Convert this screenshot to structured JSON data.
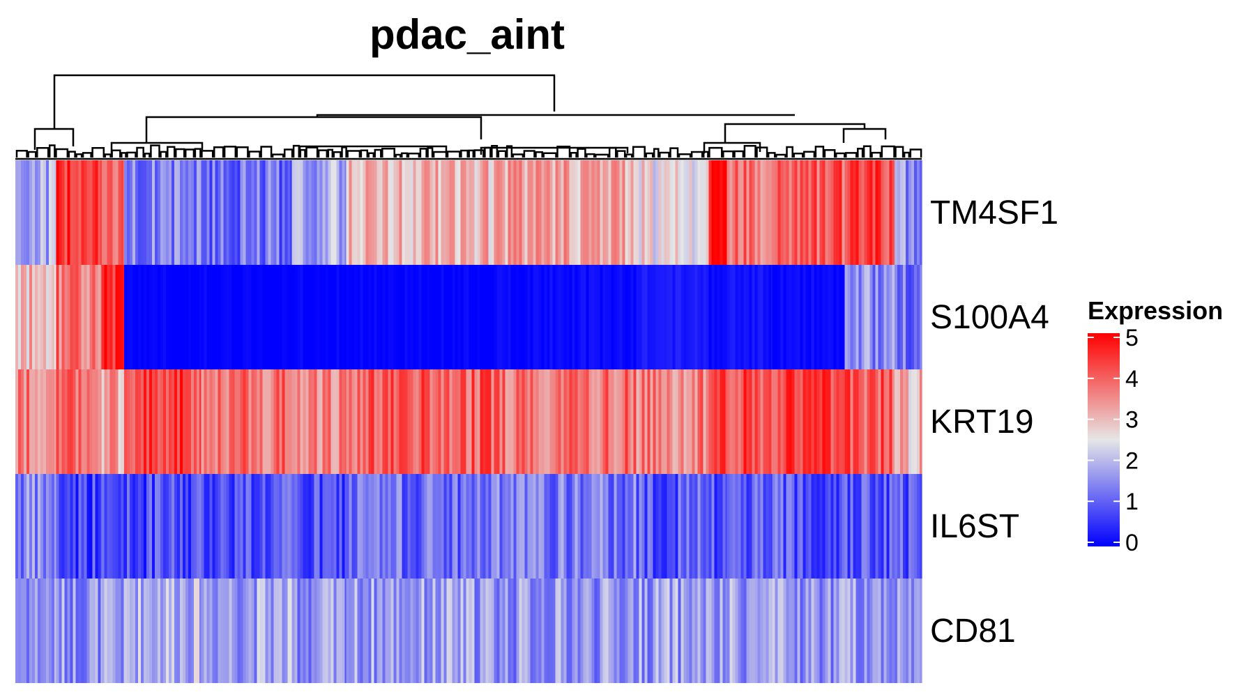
{
  "chart_data": {
    "type": "heatmap",
    "title": "pdac_aint",
    "rows": [
      "TM4SF1",
      "S100A4",
      "KRT19",
      "IL6ST",
      "CD81"
    ],
    "column_dendrogram": true,
    "value_range": [
      0,
      5
    ],
    "colorscale": {
      "low": "#0000ff",
      "mid": "#e6e6e6",
      "high": "#ff0000",
      "midpoint": 2.5
    },
    "legend": {
      "title": "Expression",
      "ticks": [
        0,
        1,
        2,
        3,
        4,
        5
      ],
      "placement": "right"
    },
    "column_blocks": [
      {
        "fraction": 0.045,
        "values": [
          1.8,
          3.0,
          3.6,
          1.4,
          1.6
        ]
      },
      {
        "fraction": 0.05,
        "values": [
          4.6,
          3.8,
          3.8,
          0.8,
          1.6
        ]
      },
      {
        "fraction": 0.025,
        "values": [
          3.6,
          4.6,
          3.2,
          0.7,
          1.6
        ]
      },
      {
        "fraction": 0.085,
        "values": [
          1.4,
          0.0,
          4.3,
          0.8,
          2.0
        ]
      },
      {
        "fraction": 0.1,
        "values": [
          1.2,
          0.0,
          3.8,
          0.9,
          1.8
        ]
      },
      {
        "fraction": 0.06,
        "values": [
          1.8,
          0.0,
          3.6,
          0.8,
          1.6
        ]
      },
      {
        "fraction": 0.16,
        "values": [
          3.0,
          0.0,
          4.0,
          1.2,
          1.7
        ]
      },
      {
        "fraction": 0.16,
        "values": [
          3.2,
          0.1,
          3.8,
          1.3,
          1.6
        ]
      },
      {
        "fraction": 0.08,
        "values": [
          2.6,
          0.3,
          3.6,
          1.0,
          1.7
        ]
      },
      {
        "fraction": 0.02,
        "values": [
          5.0,
          0.1,
          4.6,
          0.8,
          1.5
        ]
      },
      {
        "fraction": 0.05,
        "values": [
          3.8,
          0.2,
          4.2,
          1.1,
          1.7
        ]
      },
      {
        "fraction": 0.08,
        "values": [
          4.0,
          0.1,
          4.3,
          1.0,
          1.6
        ]
      },
      {
        "fraction": 0.055,
        "values": [
          4.2,
          1.5,
          4.1,
          0.9,
          1.7
        ]
      },
      {
        "fraction": 0.03,
        "values": [
          1.6,
          1.2,
          3.0,
          1.0,
          1.6
        ]
      }
    ]
  }
}
